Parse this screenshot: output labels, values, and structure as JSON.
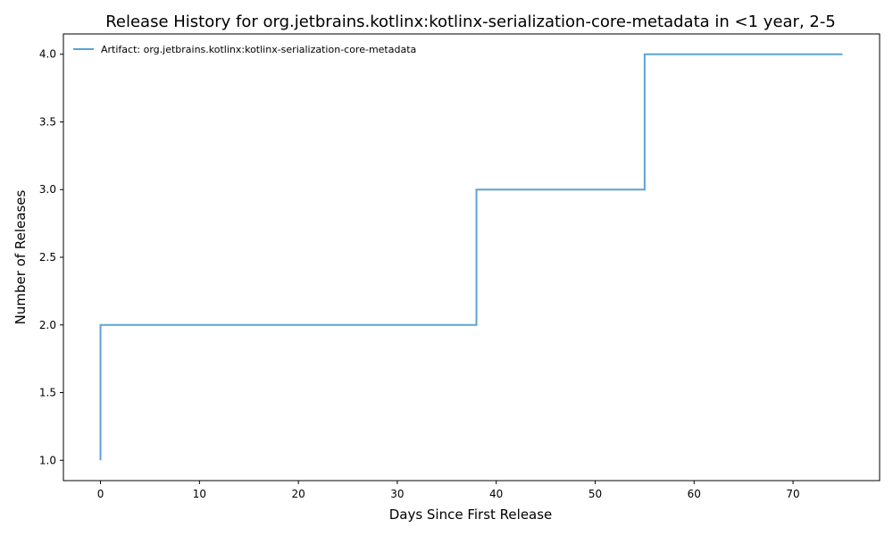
{
  "chart_data": {
    "type": "line",
    "step": "post",
    "title": "Release History for org.jetbrains.kotlinx:kotlinx-serialization-core-metadata in <1 year, 2-5",
    "xlabel": "Days Since First Release",
    "ylabel": "Number of Releases",
    "xlim": [
      -3.75,
      78.75
    ],
    "ylim": [
      0.85,
      4.15
    ],
    "x_ticks": [
      0,
      10,
      20,
      30,
      40,
      50,
      60,
      70
    ],
    "y_ticks": [
      1.0,
      1.5,
      2.0,
      2.5,
      3.0,
      3.5,
      4.0
    ],
    "grid": false,
    "legend_position": "top-left",
    "series": [
      {
        "name": "Artifact: org.jetbrains.kotlinx:kotlinx-serialization-core-metadata",
        "color": "#5ba3d3",
        "x": [
          0,
          0,
          38,
          55,
          75
        ],
        "y": [
          1,
          2,
          3,
          4,
          4
        ]
      }
    ]
  }
}
